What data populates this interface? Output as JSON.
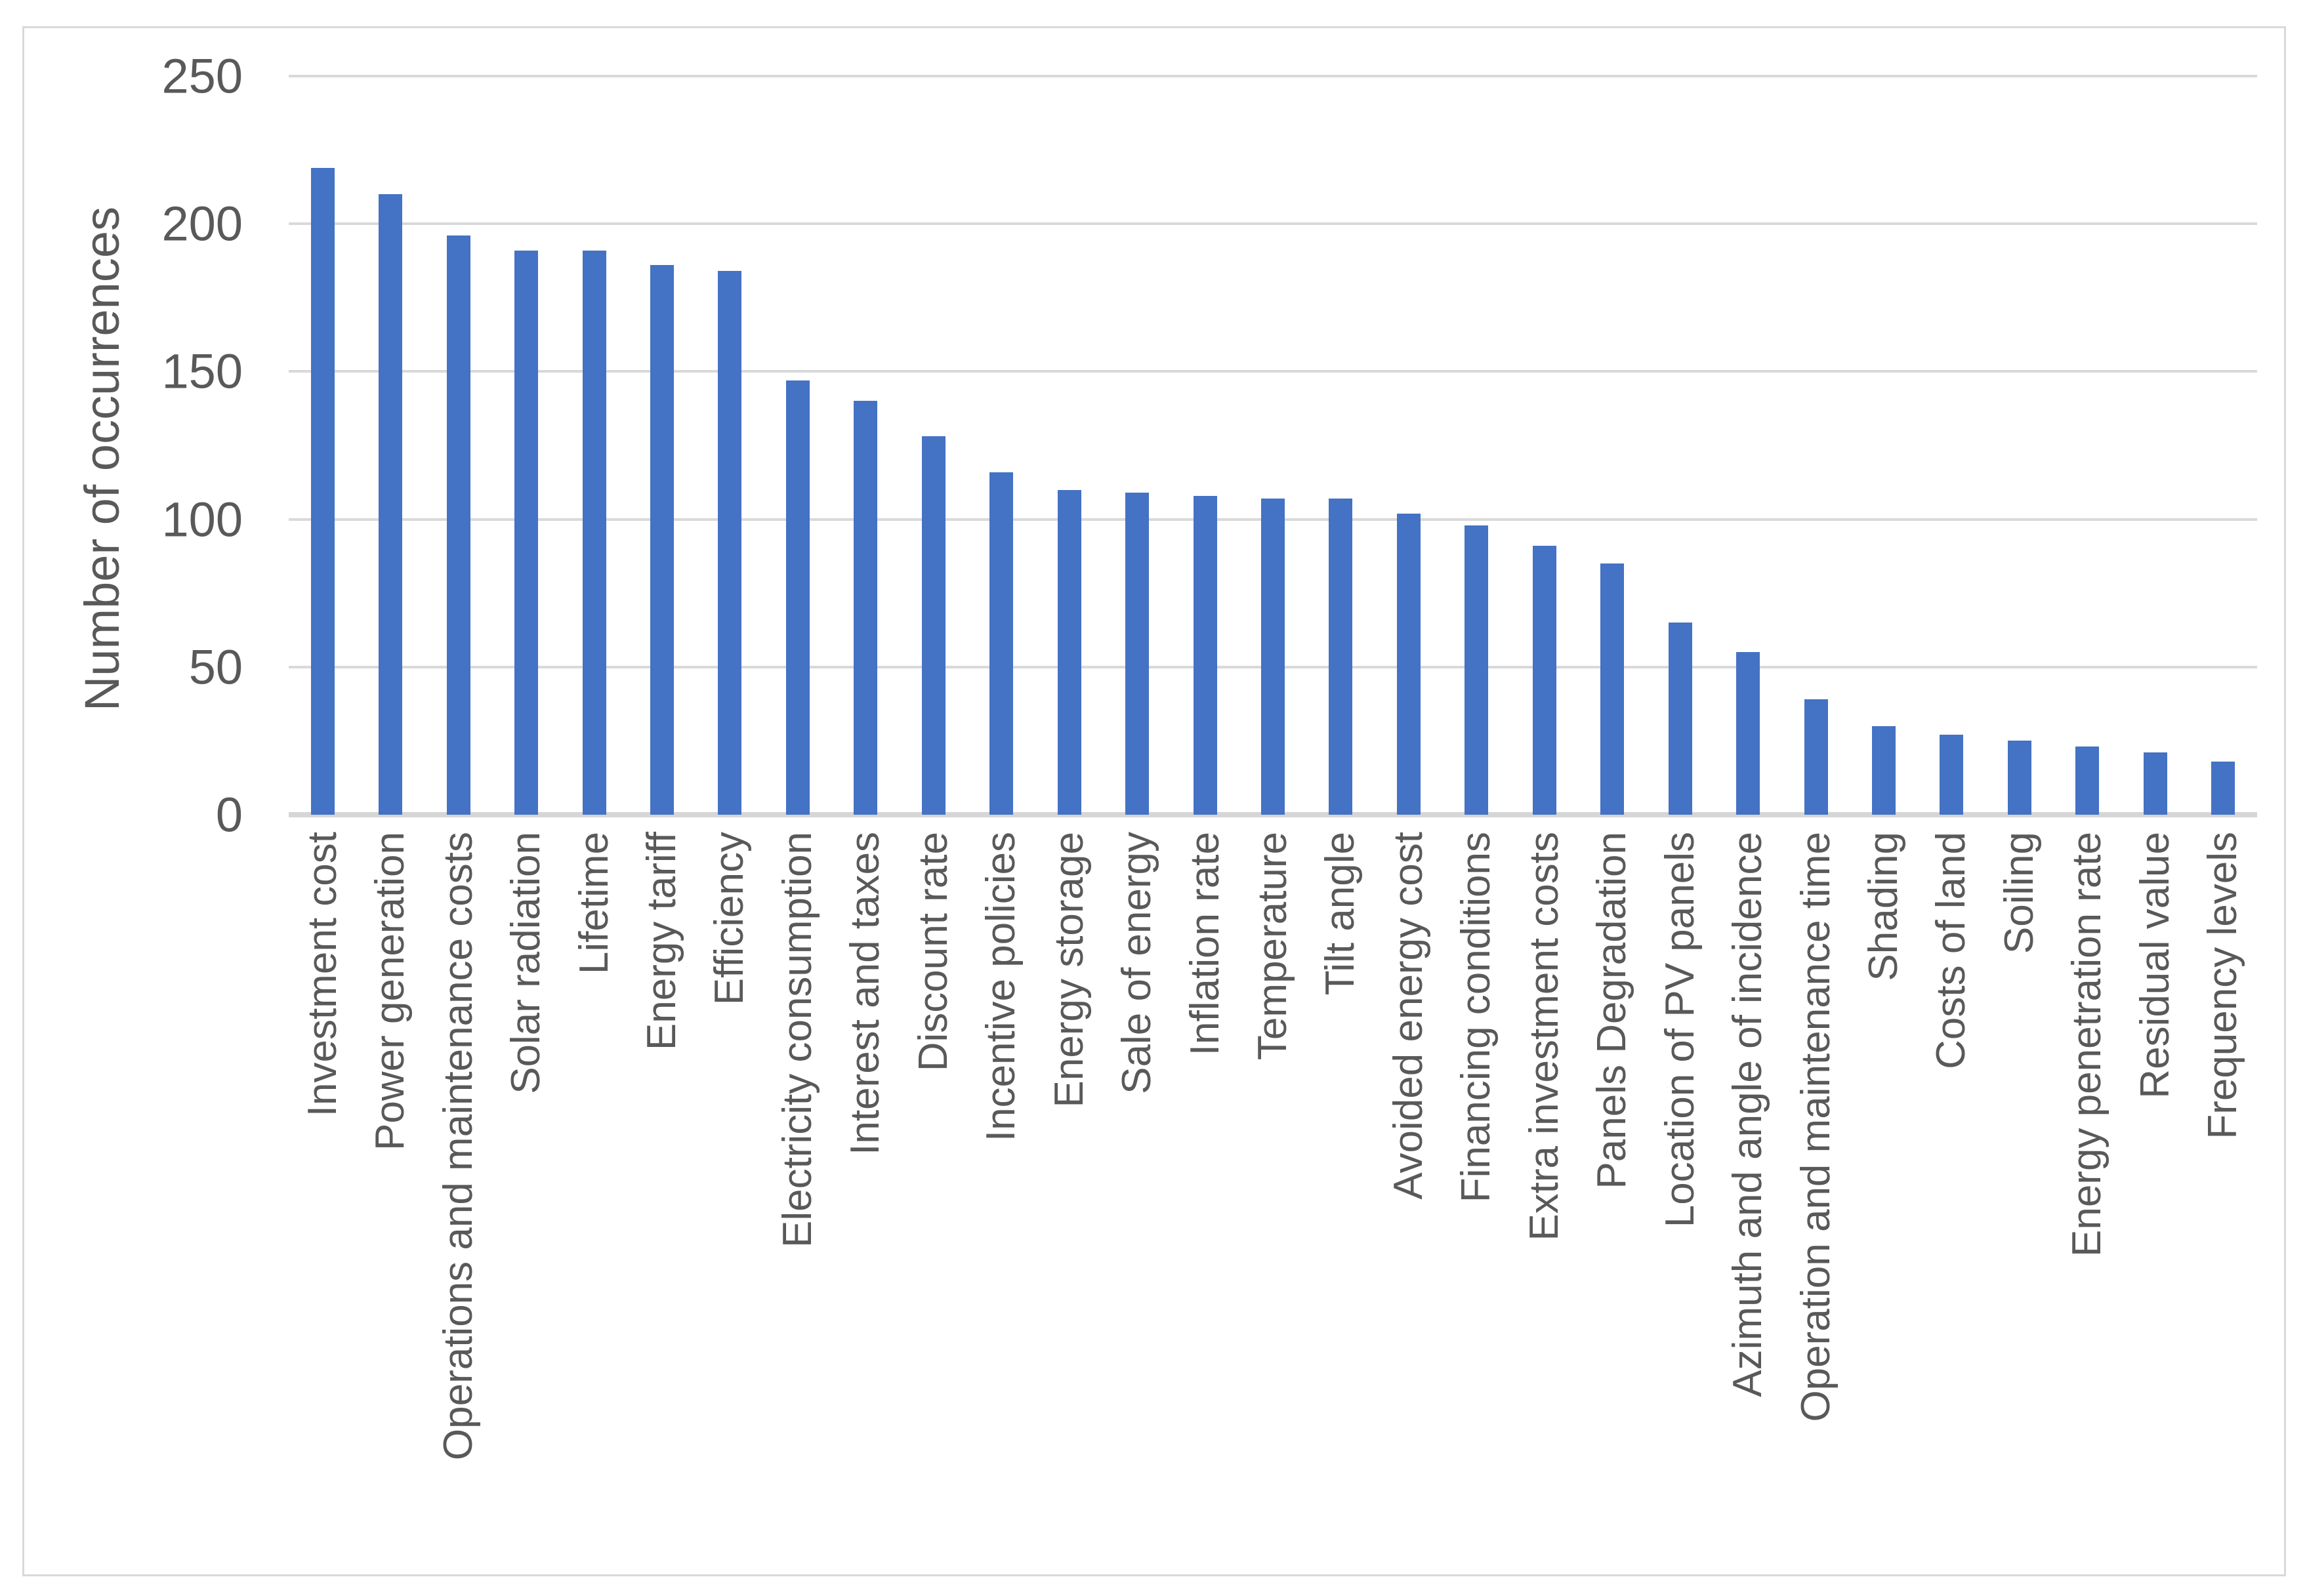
{
  "chart_data": {
    "type": "bar",
    "title": "",
    "xlabel": "",
    "ylabel": "Number of occurrences",
    "ylim": [
      0,
      250
    ],
    "yticks": [
      0,
      50,
      100,
      150,
      200,
      250
    ],
    "grid": true,
    "legend": false,
    "categories": [
      "Investment cost",
      "Power generation",
      "Operations and maintenance costs",
      "Solar radiation",
      "Lifetime",
      "Energy tariff",
      "Efficiency",
      "Electricity consumption",
      "Interest and taxes",
      "Discount rate",
      "Incentive policies",
      "Energy storage",
      "Sale of energy",
      "Inflation rate",
      "Temperature",
      "Tilt angle",
      "Avoided energy cost",
      "Financing conditions",
      "Extra investment costs",
      "Panels Degradation",
      "Location of PV panels",
      "Azimuth and angle of incidence",
      "Operation and maintenance time",
      "Shading",
      "Costs of land",
      "Soiling",
      "Energy penetration rate",
      "Residual value",
      "Frequency levels"
    ],
    "values": [
      219,
      210,
      196,
      191,
      191,
      186,
      184,
      147,
      140,
      128,
      116,
      110,
      109,
      108,
      107,
      107,
      102,
      98,
      91,
      85,
      65,
      55,
      39,
      30,
      27,
      25,
      23,
      21,
      18
    ],
    "style": {
      "bar_color": "#4472C4",
      "gridline_color": "#D9D9D9",
      "axis_line_color": "#D6D6D6",
      "text_color": "#595959",
      "frame_border_color": "#D9D9D9",
      "background": "#FFFFFF"
    }
  }
}
